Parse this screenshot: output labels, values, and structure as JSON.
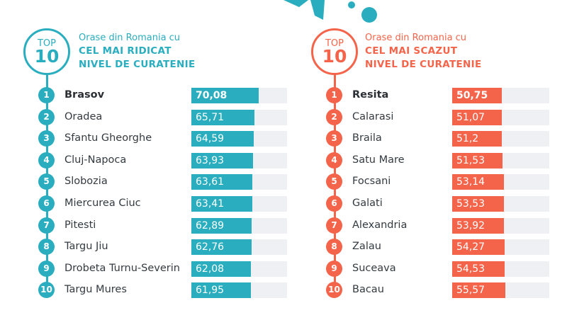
{
  "colors": {
    "teal": "#2aaebf",
    "coral": "#f4644a",
    "track": "#eef0f3"
  },
  "left": {
    "badge_top": "TOP",
    "badge_num": "10",
    "subtitle": "Orase din Romania cu",
    "title_line1": "CEL MAI RIDICAT",
    "title_line2": "NIVEL DE CURATENIE",
    "rows": [
      {
        "rank": "1",
        "city": "Brasov",
        "value": "70,08"
      },
      {
        "rank": "2",
        "city": "Oradea",
        "value": "65,71"
      },
      {
        "rank": "3",
        "city": "Sfantu Gheorghe",
        "value": "64,59"
      },
      {
        "rank": "4",
        "city": "Cluj-Napoca",
        "value": "63,93"
      },
      {
        "rank": "5",
        "city": "Slobozia",
        "value": "63,61"
      },
      {
        "rank": "6",
        "city": "Miercurea Ciuc",
        "value": "63,41"
      },
      {
        "rank": "7",
        "city": "Pitesti",
        "value": "62,89"
      },
      {
        "rank": "8",
        "city": "Targu Jiu",
        "value": "62,76"
      },
      {
        "rank": "9",
        "city": "Drobeta Turnu-Severin",
        "value": "62,08"
      },
      {
        "rank": "10",
        "city": "Targu Mures",
        "value": "61,95"
      }
    ]
  },
  "right": {
    "badge_top": "TOP",
    "badge_num": "10",
    "subtitle": "Orase din Romania cu",
    "title_line1": "CEL MAI SCAZUT",
    "title_line2": "NIVEL DE CURATENIE",
    "rows": [
      {
        "rank": "1",
        "city": "Resita",
        "value": "50,75"
      },
      {
        "rank": "2",
        "city": "Calarasi",
        "value": "51,07"
      },
      {
        "rank": "3",
        "city": "Braila",
        "value": "51,2"
      },
      {
        "rank": "4",
        "city": "Satu Mare",
        "value": "51,53"
      },
      {
        "rank": "5",
        "city": "Focsani",
        "value": "53,14"
      },
      {
        "rank": "6",
        "city": "Galati",
        "value": "53,53"
      },
      {
        "rank": "7",
        "city": "Alexandria",
        "value": "53,92"
      },
      {
        "rank": "8",
        "city": "Zalau",
        "value": "54,27"
      },
      {
        "rank": "9",
        "city": "Suceava",
        "value": "54,53"
      },
      {
        "rank": "10",
        "city": "Bacau",
        "value": "55,57"
      }
    ]
  },
  "chart_data": [
    {
      "type": "bar",
      "title": "Orase din Romania cu CEL MAI RIDICAT NIVEL DE CURATENIE (TOP 10)",
      "categories": [
        "Brasov",
        "Oradea",
        "Sfantu Gheorghe",
        "Cluj-Napoca",
        "Slobozia",
        "Miercurea Ciuc",
        "Pitesti",
        "Targu Jiu",
        "Drobeta Turnu-Severin",
        "Targu Mures"
      ],
      "values": [
        70.08,
        65.71,
        64.59,
        63.93,
        63.61,
        63.41,
        62.89,
        62.76,
        62.08,
        61.95
      ],
      "orientation": "horizontal",
      "color": "#2aaebf"
    },
    {
      "type": "bar",
      "title": "Orase din Romania cu CEL MAI SCAZUT NIVEL DE CURATENIE (TOP 10)",
      "categories": [
        "Resita",
        "Calarasi",
        "Braila",
        "Satu Mare",
        "Focsani",
        "Galati",
        "Alexandria",
        "Zalau",
        "Suceava",
        "Bacau"
      ],
      "values": [
        50.75,
        51.07,
        51.2,
        51.53,
        53.14,
        53.53,
        53.92,
        54.27,
        54.53,
        55.57
      ],
      "orientation": "horizontal",
      "color": "#f4644a"
    }
  ]
}
